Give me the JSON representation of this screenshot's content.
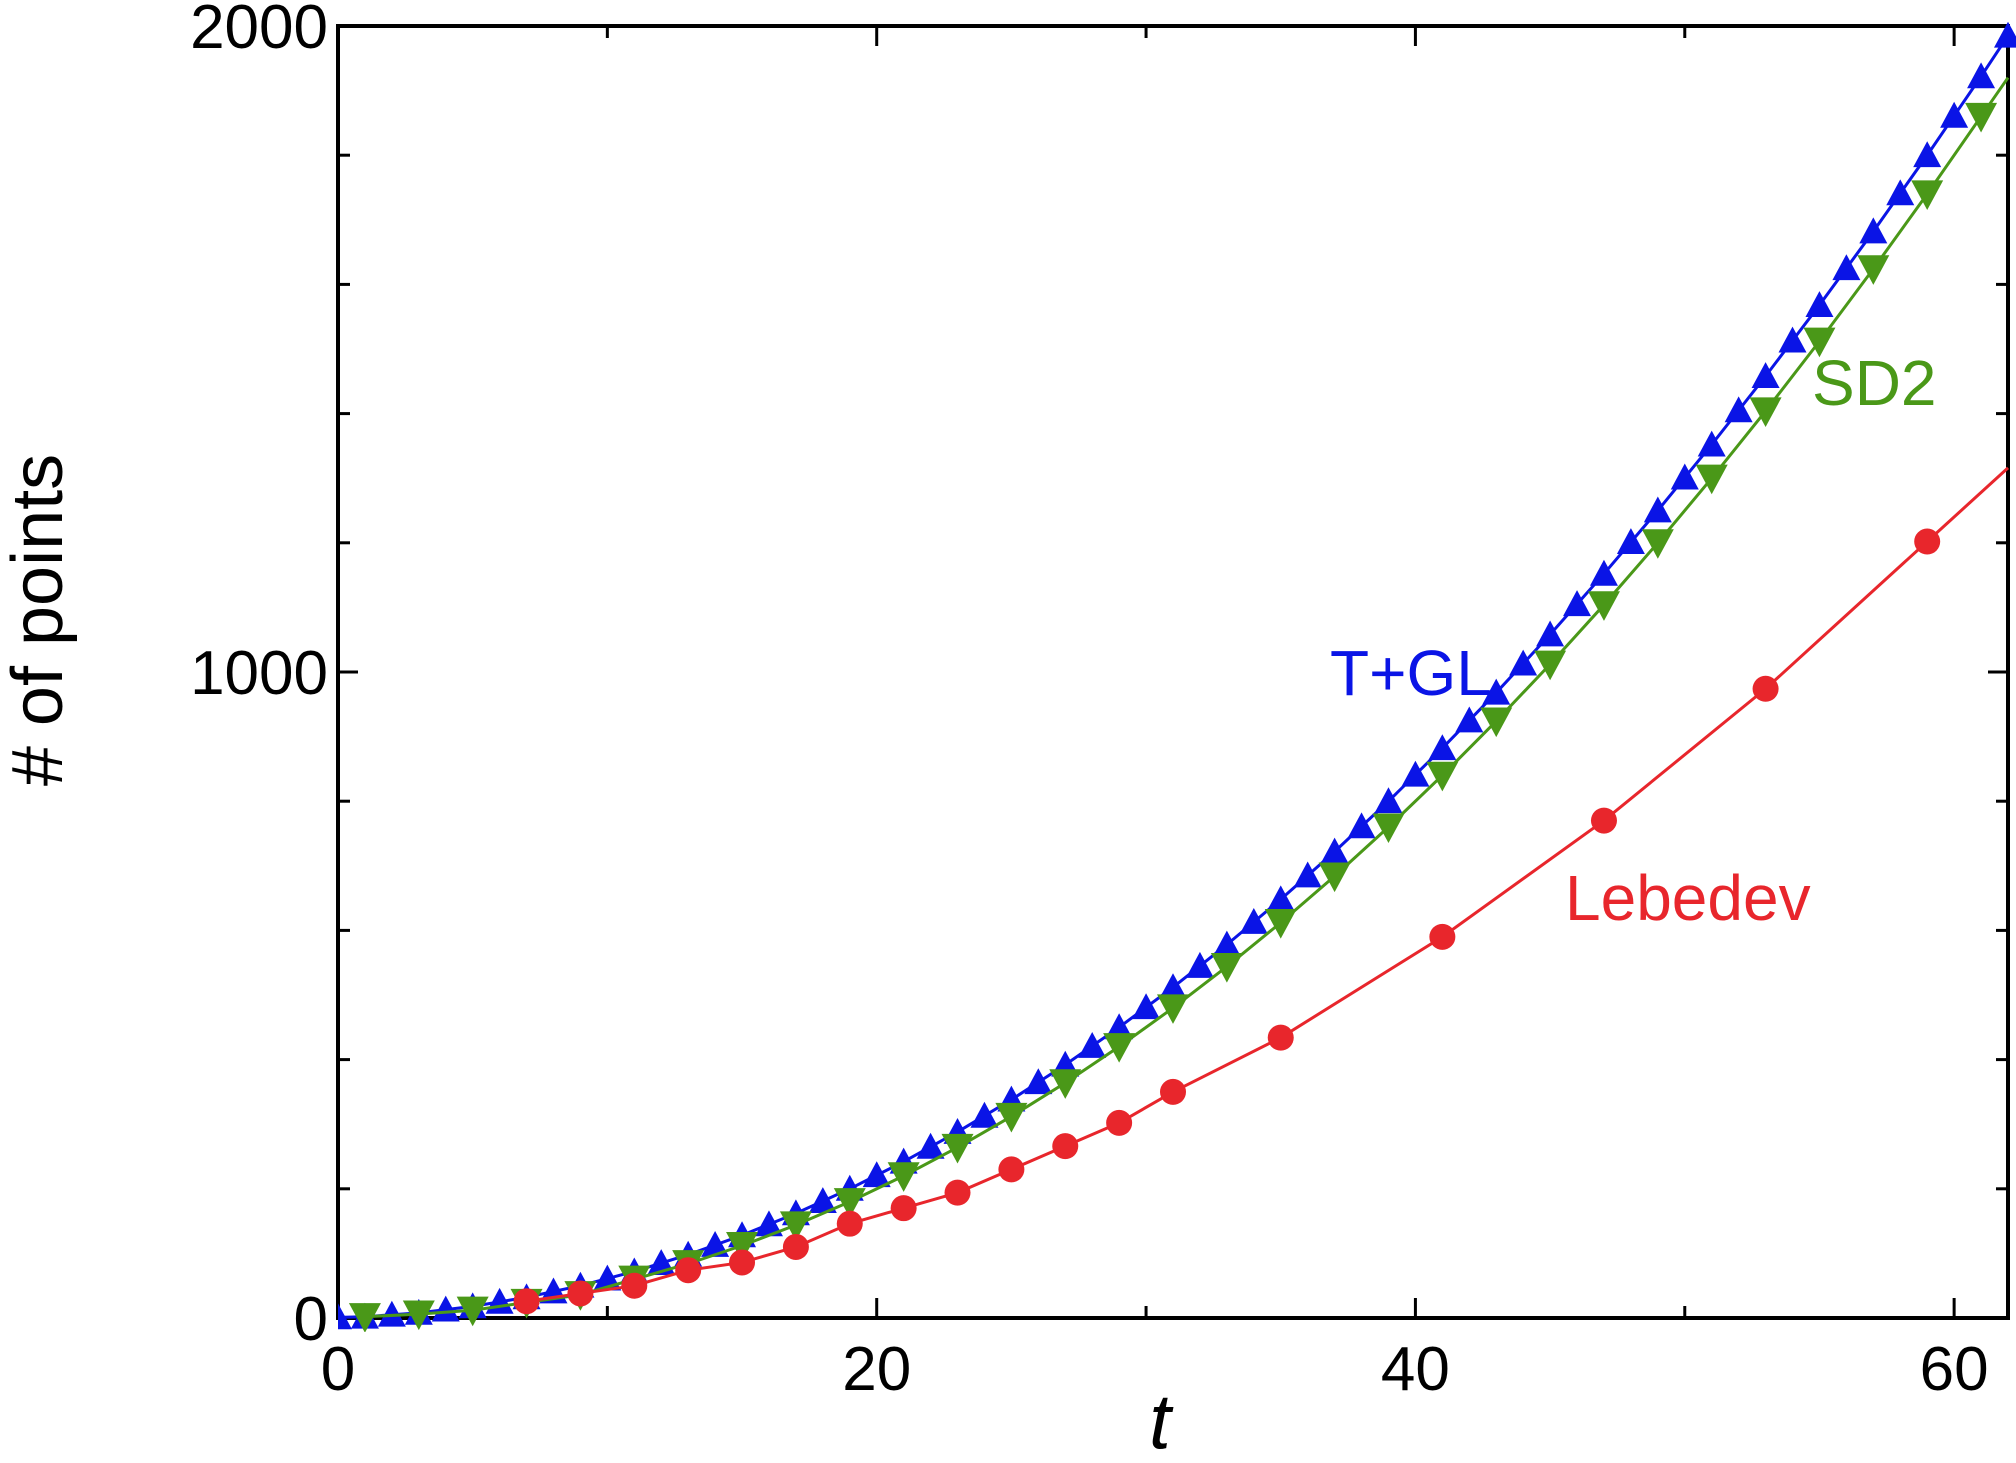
{
  "chart_data": {
    "type": "line",
    "xlabel": "t",
    "ylabel": "# of points",
    "xlim": [
      0,
      62
    ],
    "ylim": [
      0,
      2000
    ],
    "x_ticks": [
      0,
      20,
      40,
      60
    ],
    "y_ticks": [
      0,
      1000,
      2000
    ],
    "x_minor_step": 10,
    "y_minor_step": 200,
    "grid": false,
    "series": [
      {
        "name": "T+GL",
        "color": "#0a14e6",
        "marker": "triangle-up",
        "x": [
          0,
          1,
          2,
          3,
          4,
          5,
          6,
          7,
          8,
          9,
          10,
          11,
          12,
          13,
          14,
          15,
          16,
          17,
          18,
          19,
          20,
          21,
          22,
          23,
          24,
          25,
          26,
          27,
          28,
          29,
          30,
          31,
          32,
          33,
          34,
          35,
          36,
          37,
          38,
          39,
          40,
          41,
          42,
          43,
          44,
          45,
          46,
          47,
          48,
          49,
          50,
          51,
          52,
          53,
          54,
          55,
          56,
          57,
          58,
          59,
          60,
          61,
          62
        ],
        "y": [
          1,
          2,
          5,
          8,
          13,
          18,
          25,
          32,
          41,
          50,
          61,
          72,
          85,
          98,
          113,
          128,
          145,
          162,
          181,
          200,
          221,
          242,
          265,
          288,
          313,
          338,
          365,
          392,
          421,
          450,
          481,
          512,
          545,
          578,
          613,
          648,
          685,
          722,
          761,
          800,
          841,
          882,
          925,
          968,
          1013,
          1058,
          1105,
          1152,
          1201,
          1250,
          1301,
          1352,
          1405,
          1458,
          1513,
          1568,
          1625,
          1682,
          1741,
          1800,
          1861,
          1922,
          1985
        ]
      },
      {
        "name": "SD2",
        "color": "#4a9818",
        "marker": "triangle-down",
        "x": [
          1,
          3,
          5,
          7,
          9,
          11,
          13,
          15,
          17,
          19,
          21,
          23,
          25,
          27,
          29,
          31,
          33,
          35,
          37,
          39,
          41,
          43,
          45,
          47,
          49,
          51,
          53,
          55,
          57,
          59,
          61
        ],
        "y": [
          2,
          6,
          12,
          24,
          36,
          60,
          84,
          112,
          144,
          180,
          220,
          264,
          312,
          364,
          420,
          480,
          544,
          612,
          684,
          760,
          840,
          924,
          1012,
          1104,
          1200,
          1300,
          1404,
          1512,
          1624,
          1740,
          1860
        ]
      },
      {
        "name": "Lebedev",
        "color": "#e8262c",
        "marker": "circle",
        "x": [
          7,
          9,
          11,
          13,
          15,
          17,
          19,
          21,
          23,
          25,
          27,
          29,
          31,
          35,
          41,
          47,
          53,
          59
        ],
        "y": [
          26,
          38,
          50,
          74,
          86,
          110,
          146,
          170,
          194,
          230,
          266,
          302,
          350,
          434,
          590,
          770,
          974,
          1202
        ]
      }
    ],
    "annotations": [
      {
        "text": "T+GL",
        "color": "#0a14e6"
      },
      {
        "text": "SD2",
        "color": "#4a9818"
      },
      {
        "text": "Lebedev",
        "color": "#e8262c"
      }
    ]
  }
}
